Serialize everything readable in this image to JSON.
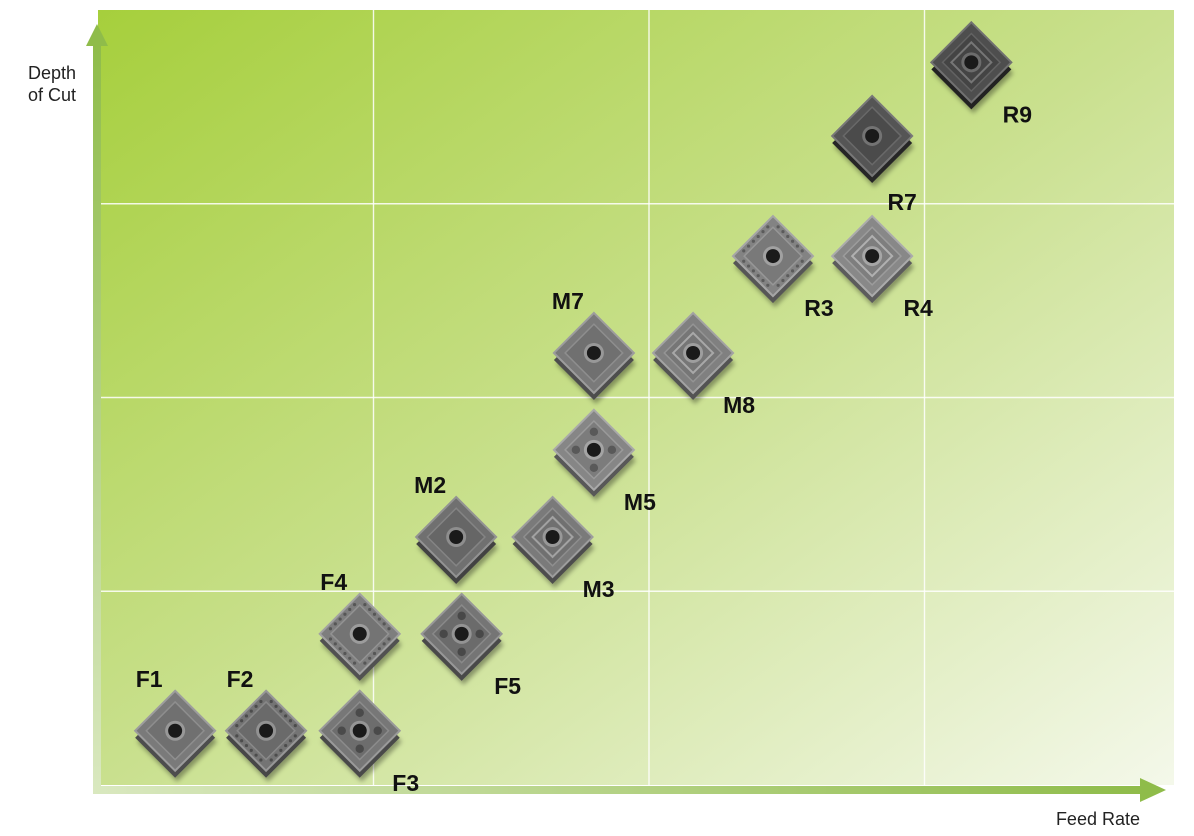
{
  "chart_data": {
    "type": "scatter",
    "xlabel": "Feed Rate",
    "ylabel": "Depth\nof Cut",
    "grid": true,
    "xlim": [
      0,
      4
    ],
    "ylim": [
      0,
      4
    ],
    "points": [
      {
        "label": "F1",
        "x": 0.28,
        "y": 0.28,
        "shade": "#7a7a7a",
        "pattern": "plain"
      },
      {
        "label": "F2",
        "x": 0.61,
        "y": 0.28,
        "shade": "#747474",
        "pattern": "dotted"
      },
      {
        "label": "F3",
        "x": 0.95,
        "y": 0.28,
        "shade": "#777777",
        "pattern": "pips"
      },
      {
        "label": "F4",
        "x": 0.95,
        "y": 0.78,
        "shade": "#7e7e7e",
        "pattern": "dotted"
      },
      {
        "label": "F5",
        "x": 1.32,
        "y": 0.78,
        "shade": "#757575",
        "pattern": "pips"
      },
      {
        "label": "M2",
        "x": 1.3,
        "y": 1.28,
        "shade": "#707070",
        "pattern": "plain"
      },
      {
        "label": "M3",
        "x": 1.65,
        "y": 1.28,
        "shade": "#7a7a7a",
        "pattern": "ring"
      },
      {
        "label": "M5",
        "x": 1.8,
        "y": 1.73,
        "shade": "#868686",
        "pattern": "pips"
      },
      {
        "label": "M7",
        "x": 1.8,
        "y": 2.23,
        "shade": "#7a7a7a",
        "pattern": "plain"
      },
      {
        "label": "M8",
        "x": 2.16,
        "y": 2.23,
        "shade": "#808080",
        "pattern": "ring"
      },
      {
        "label": "R3",
        "x": 2.45,
        "y": 2.73,
        "shade": "#838383",
        "pattern": "dotted"
      },
      {
        "label": "R4",
        "x": 2.81,
        "y": 2.73,
        "shade": "#888888",
        "pattern": "ring"
      },
      {
        "label": "R7",
        "x": 2.81,
        "y": 3.35,
        "shade": "#555555",
        "pattern": "plain"
      },
      {
        "label": "R9",
        "x": 3.17,
        "y": 3.73,
        "shade": "#4e4e4e",
        "pattern": "ring"
      }
    ],
    "colors": {
      "background_start": "#a6cf3c",
      "background_mid": "#c9e08e",
      "background_end": "#f4f8ea",
      "axis": "#8fbc4a",
      "grid": "#ffffff",
      "label": "#111111"
    }
  }
}
